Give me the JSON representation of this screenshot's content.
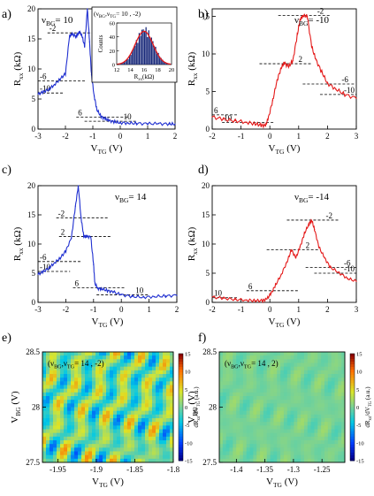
{
  "colors": {
    "blue": "#1f2fd0",
    "red": "#e41a1a",
    "axis": "#000000",
    "field_bg": "#7fd0a8"
  },
  "chart_data": [
    {
      "panel": "a)",
      "type": "line",
      "color": "blue",
      "nu_bg_label": "ν",
      "nu_bg_sub": "BG",
      "nu_bg_value": "= 10",
      "xlabel": "V",
      "xlabel_sub": "TG",
      "xunit": " (V)",
      "ylabel": "R",
      "ylabel_sub": "xx",
      "yunit": " (kΩ)",
      "xlim": [
        -3,
        2
      ],
      "ylim": [
        0,
        20
      ],
      "xticks": [
        "-3",
        "-2",
        "-1",
        "0",
        "1",
        "2"
      ],
      "yticks": [
        "0",
        "5",
        "10",
        "15",
        "20"
      ],
      "x": [
        -3.0,
        -2.8,
        -2.6,
        -2.4,
        -2.2,
        -2.0,
        -1.85,
        -1.75,
        -1.6,
        -1.5,
        -1.4,
        -1.3,
        -1.2,
        -1.12,
        -1.05,
        -0.95,
        -0.85,
        -0.7,
        -0.55,
        -0.4,
        -0.2,
        0.0,
        0.3,
        0.6,
        1.0,
        1.4,
        1.8,
        2.0
      ],
      "y": [
        5.8,
        6.2,
        6.6,
        7.4,
        8.3,
        9.2,
        15.5,
        15.8,
        15.4,
        16.2,
        15.6,
        13.8,
        20.0,
        14.5,
        9.0,
        5.5,
        3.2,
        2.1,
        1.7,
        1.4,
        1.2,
        1.05,
        1.0,
        0.95,
        0.9,
        0.9,
        0.85,
        0.85
      ],
      "plateaus": [
        {
          "label": "-2",
          "value": 16
        },
        {
          "label": "-6",
          "value": 8
        },
        {
          "label": "-10",
          "value": 6
        },
        {
          "label": "6",
          "value": 2
        },
        {
          "label": "10",
          "value": 1.3
        }
      ],
      "inset": {
        "title_nu": "ν",
        "title_bg": "BG",
        "title_comma": ",ν",
        "title_tg": "TG",
        "title_value": "= 10 , -2)",
        "title_open": "(",
        "xlabel": "R",
        "xlabel_sub": "xx",
        "xlabel_unit": "(kΩ)",
        "ylabel": "Counts",
        "xlim": [
          12,
          20
        ],
        "ylim": [
          0,
          60
        ],
        "xticks": [
          "12",
          "14",
          "16",
          "18",
          "20"
        ],
        "yticks": [
          "0",
          "20",
          "40",
          "60"
        ],
        "fit_mean": 16,
        "fit_sigma": 1.3,
        "fit_peak": 48
      }
    },
    {
      "panel": "b)",
      "type": "line",
      "color": "red",
      "nu_bg_label": "ν",
      "nu_bg_sub": "BG",
      "nu_bg_value": "= -10",
      "xlabel": "V",
      "xlabel_sub": "TG",
      "xunit": " (V)",
      "ylabel": "R",
      "ylabel_sub": "xx",
      "yunit": " (kΩ)",
      "xlim": [
        -2,
        3
      ],
      "ylim": [
        0,
        16
      ],
      "xticks": [
        "-2",
        "-1",
        "0",
        "1",
        "2",
        "3"
      ],
      "yticks": [
        "0",
        "5",
        "10",
        "15"
      ],
      "x": [
        -2.0,
        -1.6,
        -1.2,
        -0.8,
        -0.5,
        -0.3,
        -0.15,
        -0.05,
        0.1,
        0.25,
        0.4,
        0.5,
        0.65,
        0.8,
        0.95,
        1.05,
        1.15,
        1.3,
        1.45,
        1.6,
        1.8,
        2.0,
        2.3,
        2.6,
        3.0
      ],
      "y": [
        1.6,
        1.3,
        1.1,
        0.9,
        0.7,
        0.5,
        0.45,
        1.5,
        3.8,
        6.5,
        8.2,
        8.8,
        8.3,
        9.1,
        12.5,
        14.6,
        15.1,
        15.0,
        11.0,
        9.2,
        7.6,
        6.1,
        5.3,
        4.6,
        4.1
      ],
      "plateaus": [
        {
          "label": "-2",
          "value": 15.1
        },
        {
          "label": "2",
          "value": 8.7
        },
        {
          "label": "-6",
          "value": 6
        },
        {
          "label": "-10",
          "value": 4.6
        },
        {
          "label": "6",
          "value": 1.9
        },
        {
          "label": "10",
          "value": 0.9
        }
      ]
    },
    {
      "panel": "c)",
      "type": "line",
      "color": "blue",
      "nu_bg_label": "ν",
      "nu_bg_sub": "BG",
      "nu_bg_value": "= 14",
      "xlabel": "V",
      "xlabel_sub": "TG",
      "xunit": " (V)",
      "ylabel": "R",
      "ylabel_sub": "xx",
      "yunit": " (kΩ)",
      "xlim": [
        -3,
        2
      ],
      "ylim": [
        0,
        20
      ],
      "xticks": [
        "-3",
        "-2",
        "-1",
        "0",
        "1",
        "2"
      ],
      "yticks": [
        "0",
        "5",
        "10",
        "15",
        "20"
      ],
      "x": [
        -3.0,
        -2.8,
        -2.6,
        -2.4,
        -2.2,
        -2.0,
        -1.8,
        -1.65,
        -1.55,
        -1.45,
        -1.35,
        -1.25,
        -1.1,
        -1.0,
        -0.95,
        -0.85,
        -0.7,
        -0.5,
        -0.3,
        0.0,
        0.4,
        0.8,
        1.2,
        1.6,
        2.0
      ],
      "y": [
        4.8,
        5.3,
        5.9,
        6.8,
        7.6,
        8.8,
        11.0,
        16.5,
        20.0,
        14.5,
        11.3,
        11.3,
        11.2,
        6.5,
        3.2,
        2.4,
        2.3,
        2.0,
        1.8,
        1.3,
        1.0,
        0.9,
        1.0,
        1.1,
        1.2
      ],
      "plateaus": [
        {
          "label": "-2",
          "value": 14.5
        },
        {
          "label": "-6",
          "value": 7
        },
        {
          "label": "-10",
          "value": 5.3
        },
        {
          "label": "2",
          "value": 11.3
        },
        {
          "label": "6",
          "value": 2.5
        },
        {
          "label": "10",
          "value": 1.3
        }
      ]
    },
    {
      "panel": "d)",
      "type": "line",
      "color": "red",
      "nu_bg_label": "ν",
      "nu_bg_sub": "BG",
      "nu_bg_value": "= -14",
      "xlabel": "V",
      "xlabel_sub": "TG",
      "xunit": " (V)",
      "ylabel": "R",
      "ylabel_sub": "xx",
      "yunit": " (kΩ)",
      "xlim": [
        -2,
        3
      ],
      "ylim": [
        0,
        20
      ],
      "xticks": [
        "-2",
        "-1",
        "0",
        "1",
        "2",
        "3"
      ],
      "yticks": [
        "0",
        "5",
        "10",
        "15",
        "20"
      ],
      "x": [
        -2.0,
        -1.6,
        -1.2,
        -0.8,
        -0.5,
        -0.25,
        -0.1,
        0.05,
        0.2,
        0.4,
        0.6,
        0.75,
        0.9,
        1.05,
        1.2,
        1.35,
        1.45,
        1.55,
        1.7,
        1.9,
        2.1,
        2.4,
        2.7,
        3.0
      ],
      "y": [
        0.9,
        0.7,
        0.5,
        0.4,
        0.3,
        0.3,
        0.6,
        1.6,
        3.0,
        4.8,
        7.0,
        9.0,
        7.6,
        9.5,
        11.8,
        13.4,
        14.1,
        12.5,
        9.5,
        7.6,
        6.0,
        5.1,
        4.1,
        3.6
      ],
      "plateaus": [
        {
          "label": "-2",
          "value": 14.1
        },
        {
          "label": "2",
          "value": 9
        },
        {
          "label": "-6",
          "value": 6
        },
        {
          "label": "-10",
          "value": 5
        },
        {
          "label": "6",
          "value": 2
        },
        {
          "label": "10",
          "value": 0.8
        }
      ]
    },
    {
      "panel": "e)",
      "type": "heatmap",
      "annot_open": "(ν",
      "annot_bg": "BG",
      "annot_comma": ",ν",
      "annot_tg": "TG",
      "annot_value": "= 14 , -2)",
      "xlabel": "V",
      "xlabel_sub": "TG",
      "xunit": " (V)",
      "ylabel": "V",
      "ylabel_sub": "BG",
      "yunit": " (V)",
      "xlim": [
        -1.97,
        -1.8
      ],
      "ylim": [
        27.5,
        28.5
      ],
      "xticks": [
        "-1.95",
        "-1.9",
        "-1.85",
        "-1.8"
      ],
      "yticks": [
        "27.5",
        "28",
        "28.5"
      ],
      "colorbar_label": "dR",
      "colorbar_label_sub": "xx",
      "colorbar_label_mid": "/dV",
      "colorbar_label_sub2": "TG",
      "colorbar_label_unit": " (a.u.)",
      "colorbar_ticks": [
        "15",
        "10",
        "5",
        "0",
        "-5",
        "-10",
        "-15"
      ],
      "clim": [
        -15,
        15
      ],
      "fluctuation_amplitude": 8
    },
    {
      "panel": "f)",
      "type": "heatmap",
      "annot_open": "(ν",
      "annot_bg": "BG",
      "annot_comma": ",ν",
      "annot_tg": "TG",
      "annot_value": "= 14 , 2)",
      "xlabel": "V",
      "xlabel_sub": "TG",
      "xunit": " (V)",
      "ylabel": "V",
      "ylabel_sub": "BG",
      "yunit": " (V)",
      "xlim": [
        -1.43,
        -1.21
      ],
      "ylim": [
        27.5,
        28.5
      ],
      "xticks": [
        "-1.4",
        "-1.35",
        "-1.3",
        "-1.25"
      ],
      "yticks": [
        "27.5",
        "28",
        "28.5"
      ],
      "colorbar_label": "dR",
      "colorbar_label_sub": "xx",
      "colorbar_label_mid": "/dV",
      "colorbar_label_sub2": "TG",
      "colorbar_label_unit": " (a.u.)",
      "colorbar_ticks": [
        "15",
        "10",
        "5",
        "0",
        "-5",
        "-10",
        "-15"
      ],
      "clim": [
        -15,
        15
      ],
      "fluctuation_amplitude": 1.5
    }
  ]
}
